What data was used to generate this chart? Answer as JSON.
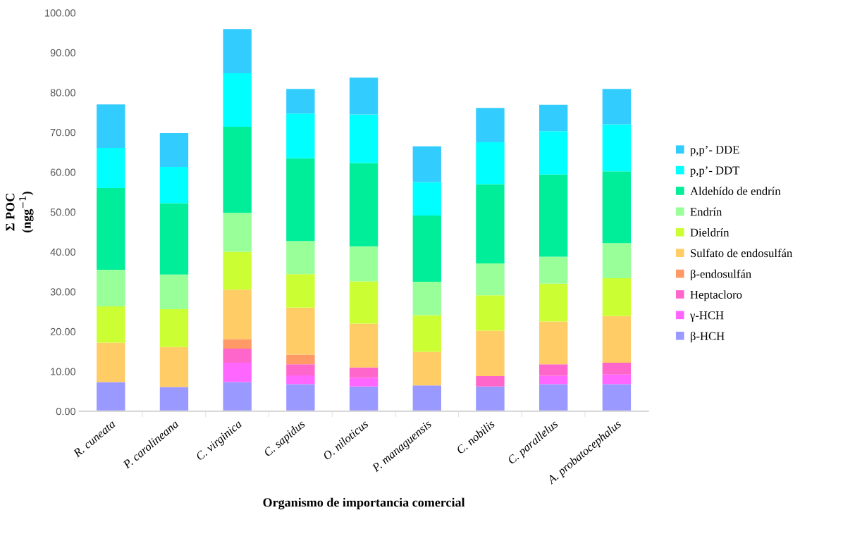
{
  "chart_data": {
    "type": "bar",
    "stacked": true,
    "xlabel": "Organismo de importancia comercial",
    "ylabel": "Σ POC\n(ngg$^{−1}$)",
    "categories": [
      "R. cuneata",
      "P. carolineana",
      "C. virginica",
      "C. sapidus",
      "O. niloticus",
      "P. managuensis",
      "C. nobilis",
      "C. parallelus",
      "A. probatocephalus"
    ],
    "ylim": [
      0,
      100
    ],
    "yticks": [
      {
        "value": 0,
        "label": "0.00"
      },
      {
        "value": 10,
        "label": "10.00"
      },
      {
        "value": 20,
        "label": "20.00"
      },
      {
        "value": 30,
        "label": "30.00"
      },
      {
        "value": 40,
        "label": "40.00"
      },
      {
        "value": 50,
        "label": "50.00"
      },
      {
        "value": 60,
        "label": "60.00"
      },
      {
        "value": 70,
        "label": "70.00"
      },
      {
        "value": 80,
        "label": "80.00"
      },
      {
        "value": 90,
        "label": "90.00"
      },
      {
        "value": 100,
        "label": "100.00"
      }
    ],
    "grid": false,
    "legend": "right",
    "series": [
      {
        "name": "β-HCH",
        "color": "#9999ff",
        "values": [
          7.3,
          6.1,
          7.3,
          6.8,
          6.2,
          6.5,
          6.2,
          6.8,
          6.8
        ]
      },
      {
        "name": "γ-HCH",
        "color": "#ff66ff",
        "values": [
          null,
          null,
          4.9,
          2.2,
          2.2,
          null,
          null,
          2.1,
          2.4
        ]
      },
      {
        "name": "Heptacloro",
        "color": "#ff66cc",
        "values": [
          null,
          null,
          3.5,
          2.8,
          2.6,
          null,
          2.6,
          2.9,
          3.0
        ]
      },
      {
        "name": "β-endosulfán",
        "color": "#ff9966",
        "values": [
          null,
          null,
          2.4,
          2.4,
          null,
          null,
          null,
          null,
          null
        ]
      },
      {
        "name": "Sulfato de endosulfán",
        "color": "#ffcc66",
        "values": [
          9.9,
          10.0,
          12.4,
          11.8,
          11.0,
          8.4,
          11.4,
          10.7,
          11.7
        ]
      },
      {
        "name": "Dieldrín",
        "color": "#ccff33",
        "values": [
          9.1,
          9.5,
          9.5,
          8.4,
          10.6,
          9.2,
          8.9,
          9.5,
          9.5
        ]
      },
      {
        "name": "Endrín",
        "color": "#99ff99",
        "values": [
          9.2,
          8.7,
          9.8,
          8.3,
          8.8,
          8.4,
          8.0,
          6.8,
          8.8
        ]
      },
      {
        "name": "Aldehído de endrín",
        "color": "#00ee99",
        "values": [
          20.5,
          17.9,
          21.6,
          20.8,
          20.9,
          16.6,
          19.9,
          20.6,
          18.0
        ]
      },
      {
        "name": "p,p’- DDT",
        "color": "#00ffff",
        "values": [
          10.1,
          9.1,
          13.4,
          11.2,
          12.2,
          8.4,
          10.5,
          10.9,
          11.8
        ]
      },
      {
        "name": "p,p’- DDE",
        "color": "#33ccff",
        "values": [
          10.9,
          8.5,
          11.1,
          6.2,
          9.2,
          9.0,
          8.6,
          6.6,
          8.9
        ]
      }
    ]
  }
}
